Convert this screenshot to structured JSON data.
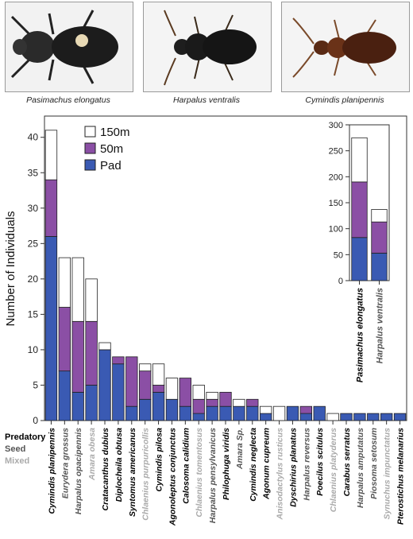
{
  "captions": [
    "Pasimachus elongatus",
    "Harpalus ventralis",
    "Cymindis planipennis"
  ],
  "feeding_legend": [
    {
      "label": "Predatory",
      "color": "#000000"
    },
    {
      "label": "Seed",
      "color": "#555555"
    },
    {
      "label": "Mixed",
      "color": "#aaaaaa"
    }
  ],
  "colors": {
    "Pad": "#3a5ab3",
    "50m": "#8b4fa5",
    "150m": "#ffffff"
  },
  "chart_data": [
    {
      "type": "bar",
      "stacked": true,
      "ylabel": "Number of Individuals",
      "ylim": [
        0,
        43
      ],
      "yticks": [
        0,
        5,
        10,
        15,
        20,
        25,
        30,
        35,
        40
      ],
      "legend": [
        "150m",
        "50m",
        "Pad"
      ],
      "legend_position": "top-left",
      "categories": [
        "Cymindis planipennis",
        "Eurydera grossus",
        "Harpalus opacipennis",
        "Amara obesa",
        "Cratacanthus dubius",
        "Diplocheila obtusa",
        "Syntomus americanus",
        "Chlaenius purpuricollis",
        "Cymindis pilosa",
        "Agonoleptus conjunctus",
        "Calosoma calidium",
        "Chlaenius tomentosus",
        "Harpalus pensylvanicus",
        "Philophuga viridis",
        "Amara Sp.",
        "Cymindis neglecta",
        "Agonum cupreum",
        "Anisodactylus rusticus",
        "Dyschirius planatus",
        "Harpalus reversus",
        "Poecilus scitulus",
        "Chlaenius platyderus",
        "Carabus serratus",
        "Harpalus amputatus",
        "Piosoma setosum",
        "Synuchus impunctatus",
        "Pterostichus melanarius"
      ],
      "feeding": [
        "Predatory",
        "Seed",
        "Seed",
        "Mixed",
        "Predatory",
        "Predatory",
        "Predatory",
        "Mixed",
        "Predatory",
        "Predatory",
        "Predatory",
        "Mixed",
        "Seed",
        "Predatory",
        "Seed",
        "Predatory",
        "Predatory",
        "Mixed",
        "Predatory",
        "Seed",
        "Predatory",
        "Mixed",
        "Predatory",
        "Seed",
        "Seed",
        "Mixed",
        "Predatory"
      ],
      "series": [
        {
          "name": "Pad",
          "values": [
            26,
            7,
            4,
            5,
            10,
            8,
            2,
            3,
            4,
            3,
            2,
            1,
            2,
            2,
            2,
            2,
            1,
            0,
            2,
            1,
            2,
            0,
            1,
            1,
            1,
            1,
            1
          ]
        },
        {
          "name": "50m",
          "values": [
            8,
            9,
            10,
            9,
            0,
            1,
            7,
            4,
            1,
            0,
            4,
            2,
            1,
            2,
            0,
            1,
            0,
            0,
            0,
            1,
            0,
            0,
            0,
            0,
            0,
            0,
            0
          ]
        },
        {
          "name": "150m",
          "values": [
            7,
            7,
            9,
            6,
            1,
            0,
            0,
            1,
            3,
            3,
            0,
            2,
            1,
            0,
            1,
            0,
            1,
            2,
            0,
            0,
            0,
            1,
            0,
            0,
            0,
            0,
            0
          ]
        }
      ]
    },
    {
      "type": "bar",
      "stacked": true,
      "ylim": [
        0,
        300
      ],
      "yticks": [
        0,
        50,
        100,
        150,
        200,
        250,
        300
      ],
      "categories": [
        "Pasimachus elongatus",
        "Harpalus ventralis"
      ],
      "feeding": [
        "Predatory",
        "Seed"
      ],
      "series": [
        {
          "name": "Pad",
          "values": [
            83,
            53
          ]
        },
        {
          "name": "50m",
          "values": [
            107,
            60
          ]
        },
        {
          "name": "150m",
          "values": [
            85,
            24
          ]
        }
      ]
    }
  ]
}
